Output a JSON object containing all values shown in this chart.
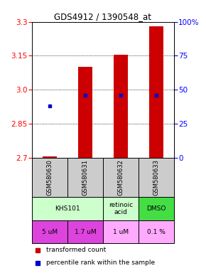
{
  "title": "GDS4912 / 1390548_at",
  "samples": [
    "GSM580630",
    "GSM580631",
    "GSM580632",
    "GSM580633"
  ],
  "bar_values": [
    2.706,
    3.1,
    3.155,
    3.28
  ],
  "bar_bottom": 2.7,
  "percentile_values": [
    2.93,
    2.975,
    2.975,
    2.975
  ],
  "ylim": [
    2.7,
    3.3
  ],
  "y_ticks_left": [
    2.7,
    2.85,
    3.0,
    3.15,
    3.3
  ],
  "y_ticks_right": [
    0,
    25,
    50,
    75,
    100
  ],
  "bar_color": "#cc0000",
  "dot_color": "#0000cc",
  "agent_bg_light": "#ccffcc",
  "agent_bg_medium": "#44dd44",
  "dose_bg_dark": "#dd44dd",
  "dose_bg_light": "#ffaaff",
  "sample_bg": "#cccccc",
  "bar_width": 0.4,
  "agent_info": [
    [
      0,
      2,
      "KHS101",
      "#ccffcc"
    ],
    [
      2,
      3,
      "retinoic\nacid",
      "#ccffcc"
    ],
    [
      3,
      4,
      "DMSO",
      "#44dd44"
    ]
  ],
  "dose_info": [
    [
      "5 uM",
      "#dd44dd"
    ],
    [
      "1.7 uM",
      "#dd44dd"
    ],
    [
      "1 uM",
      "#ffaaff"
    ],
    [
      "0.1 %",
      "#ffaaff"
    ]
  ]
}
